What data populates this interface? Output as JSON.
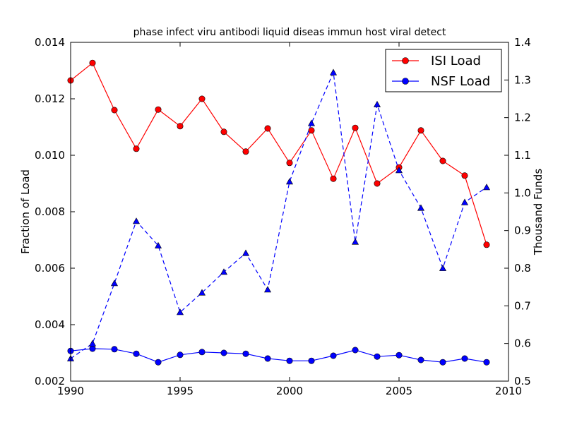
{
  "chart_data": {
    "type": "line",
    "title": "phase infect viru antibodi liquid diseas immun host viral detect",
    "xlabel": "",
    "ylabel_left": "Fraction of Load",
    "ylabel_right": "Thousand Funds",
    "xlim": [
      1990,
      2010
    ],
    "ylim_left": [
      0.002,
      0.014
    ],
    "ylim_right": [
      0.5,
      1.4
    ],
    "x_ticks": [
      "1990",
      "1995",
      "2000",
      "2005",
      "2010"
    ],
    "y_left_ticks": [
      "0.002",
      "0.004",
      "0.006",
      "0.008",
      "0.010",
      "0.012",
      "0.014"
    ],
    "y_right_ticks": [
      "0.5",
      "0.6",
      "0.7",
      "0.8",
      "0.9",
      "1.0",
      "1.1",
      "1.2",
      "1.3",
      "1.4"
    ],
    "grid": false,
    "legend_position": "top-right",
    "x": [
      1990,
      1991,
      1992,
      1993,
      1994,
      1995,
      1996,
      1997,
      1998,
      1999,
      2000,
      2001,
      2002,
      2003,
      2004,
      2005,
      2006,
      2007,
      2008,
      2009
    ],
    "series": [
      {
        "name": "ISI Load",
        "axis": "left",
        "style": "solid",
        "marker": "circle",
        "color": "#ff0000",
        "values": [
          0.01265,
          0.01327,
          0.0116,
          0.01023,
          0.01162,
          0.01103,
          0.012,
          0.01083,
          0.01013,
          0.01095,
          0.00973,
          0.01088,
          0.00917,
          0.01097,
          0.009,
          0.00957,
          0.01088,
          0.0098,
          0.00928,
          0.00683
        ]
      },
      {
        "name": "NSF Load",
        "axis": "left",
        "style": "solid",
        "marker": "circle",
        "color": "#0000ff",
        "values": [
          0.00307,
          0.00315,
          0.00313,
          0.00297,
          0.00267,
          0.00293,
          0.00303,
          0.003,
          0.00297,
          0.0028,
          0.00272,
          0.00272,
          0.0029,
          0.0031,
          0.00287,
          0.00292,
          0.00275,
          0.00267,
          0.0028,
          0.00267
        ]
      },
      {
        "name": "",
        "axis": "right",
        "style": "dashed",
        "marker": "triangle",
        "color": "#0000ff",
        "values": [
          0.56,
          0.6,
          0.76,
          0.925,
          0.86,
          0.683,
          0.735,
          0.79,
          0.84,
          0.743,
          1.03,
          1.185,
          1.32,
          0.87,
          1.235,
          1.06,
          0.96,
          0.8,
          0.975,
          1.015
        ]
      }
    ]
  }
}
